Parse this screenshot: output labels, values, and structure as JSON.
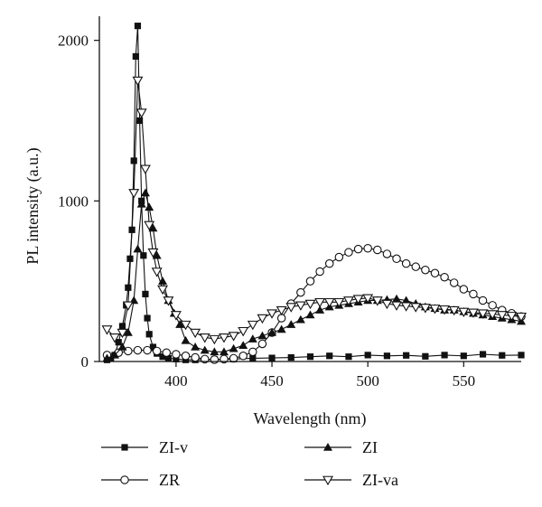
{
  "chart_data": {
    "type": "line",
    "title": "",
    "xlabel": "Wavelength (nm)",
    "ylabel": "PL intensity (a.u.)",
    "xlim": [
      360,
      580
    ],
    "ylim": [
      0,
      2150
    ],
    "x_ticks": [
      400,
      450,
      500,
      550
    ],
    "y_ticks": [
      0,
      1000,
      2000
    ],
    "grid": false,
    "legend_position": "bottom",
    "series": [
      {
        "name": "ZI-v",
        "marker": "filled-square",
        "x": [
          364,
          366,
          368,
          370,
          372,
          374,
          375,
          376,
          377,
          378,
          379,
          380,
          381,
          382,
          383,
          384,
          385,
          386,
          388,
          390,
          393,
          396,
          400,
          405,
          410,
          420,
          430,
          440,
          450,
          460,
          470,
          480,
          490,
          500,
          510,
          520,
          530,
          540,
          550,
          560,
          570,
          580
        ],
        "y": [
          10,
          20,
          40,
          120,
          220,
          350,
          460,
          640,
          820,
          1250,
          1900,
          2090,
          1500,
          1000,
          660,
          420,
          270,
          170,
          90,
          50,
          30,
          20,
          15,
          10,
          10,
          12,
          15,
          20,
          22,
          25,
          30,
          35,
          30,
          40,
          35,
          38,
          32,
          40,
          35,
          45,
          38,
          40
        ]
      },
      {
        "name": "ZR",
        "marker": "open-circle",
        "x": [
          364,
          370,
          375,
          380,
          385,
          390,
          395,
          400,
          405,
          410,
          415,
          420,
          425,
          430,
          435,
          440,
          445,
          450,
          455,
          460,
          465,
          470,
          475,
          480,
          485,
          490,
          495,
          500,
          505,
          510,
          515,
          520,
          525,
          530,
          535,
          540,
          545,
          550,
          555,
          560,
          565,
          570,
          575,
          580
        ],
        "y": [
          40,
          55,
          65,
          70,
          70,
          65,
          55,
          45,
          35,
          25,
          15,
          12,
          15,
          20,
          35,
          60,
          110,
          180,
          270,
          360,
          430,
          500,
          560,
          610,
          650,
          680,
          700,
          705,
          695,
          670,
          640,
          610,
          590,
          570,
          550,
          525,
          490,
          450,
          420,
          380,
          350,
          320,
          300,
          280
        ]
      },
      {
        "name": "ZI",
        "marker": "filled-triangle",
        "x": [
          364,
          368,
          372,
          375,
          378,
          380,
          382,
          384,
          386,
          388,
          390,
          393,
          396,
          399,
          402,
          405,
          410,
          415,
          420,
          425,
          430,
          435,
          440,
          445,
          450,
          455,
          460,
          465,
          470,
          475,
          480,
          485,
          490,
          495,
          500,
          505,
          510,
          515,
          520,
          525,
          530,
          535,
          540,
          545,
          550,
          555,
          560,
          565,
          570,
          575,
          580
        ],
        "y": [
          20,
          40,
          90,
          180,
          380,
          700,
          980,
          1050,
          960,
          830,
          660,
          500,
          380,
          300,
          230,
          130,
          90,
          70,
          60,
          60,
          80,
          100,
          140,
          160,
          180,
          200,
          230,
          260,
          290,
          320,
          340,
          350,
          360,
          370,
          380,
          380,
          385,
          390,
          380,
          360,
          340,
          330,
          320,
          320,
          310,
          300,
          290,
          280,
          270,
          260,
          250
        ]
      },
      {
        "name": "ZI-va",
        "marker": "open-triangle-down",
        "x": [
          364,
          368,
          372,
          375,
          378,
          380,
          382,
          384,
          386,
          388,
          390,
          393,
          396,
          400,
          405,
          410,
          415,
          420,
          425,
          430,
          435,
          440,
          445,
          450,
          455,
          460,
          465,
          470,
          475,
          480,
          485,
          490,
          495,
          500,
          505,
          510,
          515,
          520,
          525,
          530,
          535,
          540,
          545,
          550,
          555,
          560,
          565,
          570,
          575,
          580
        ],
        "y": [
          200,
          150,
          180,
          350,
          1050,
          1750,
          1550,
          1200,
          850,
          680,
          560,
          450,
          380,
          290,
          230,
          180,
          150,
          140,
          150,
          160,
          190,
          230,
          270,
          300,
          320,
          340,
          350,
          360,
          370,
          370,
          370,
          380,
          390,
          395,
          380,
          360,
          350,
          345,
          340,
          335,
          330,
          325,
          320,
          310,
          305,
          300,
          295,
          290,
          285,
          280
        ]
      }
    ]
  }
}
